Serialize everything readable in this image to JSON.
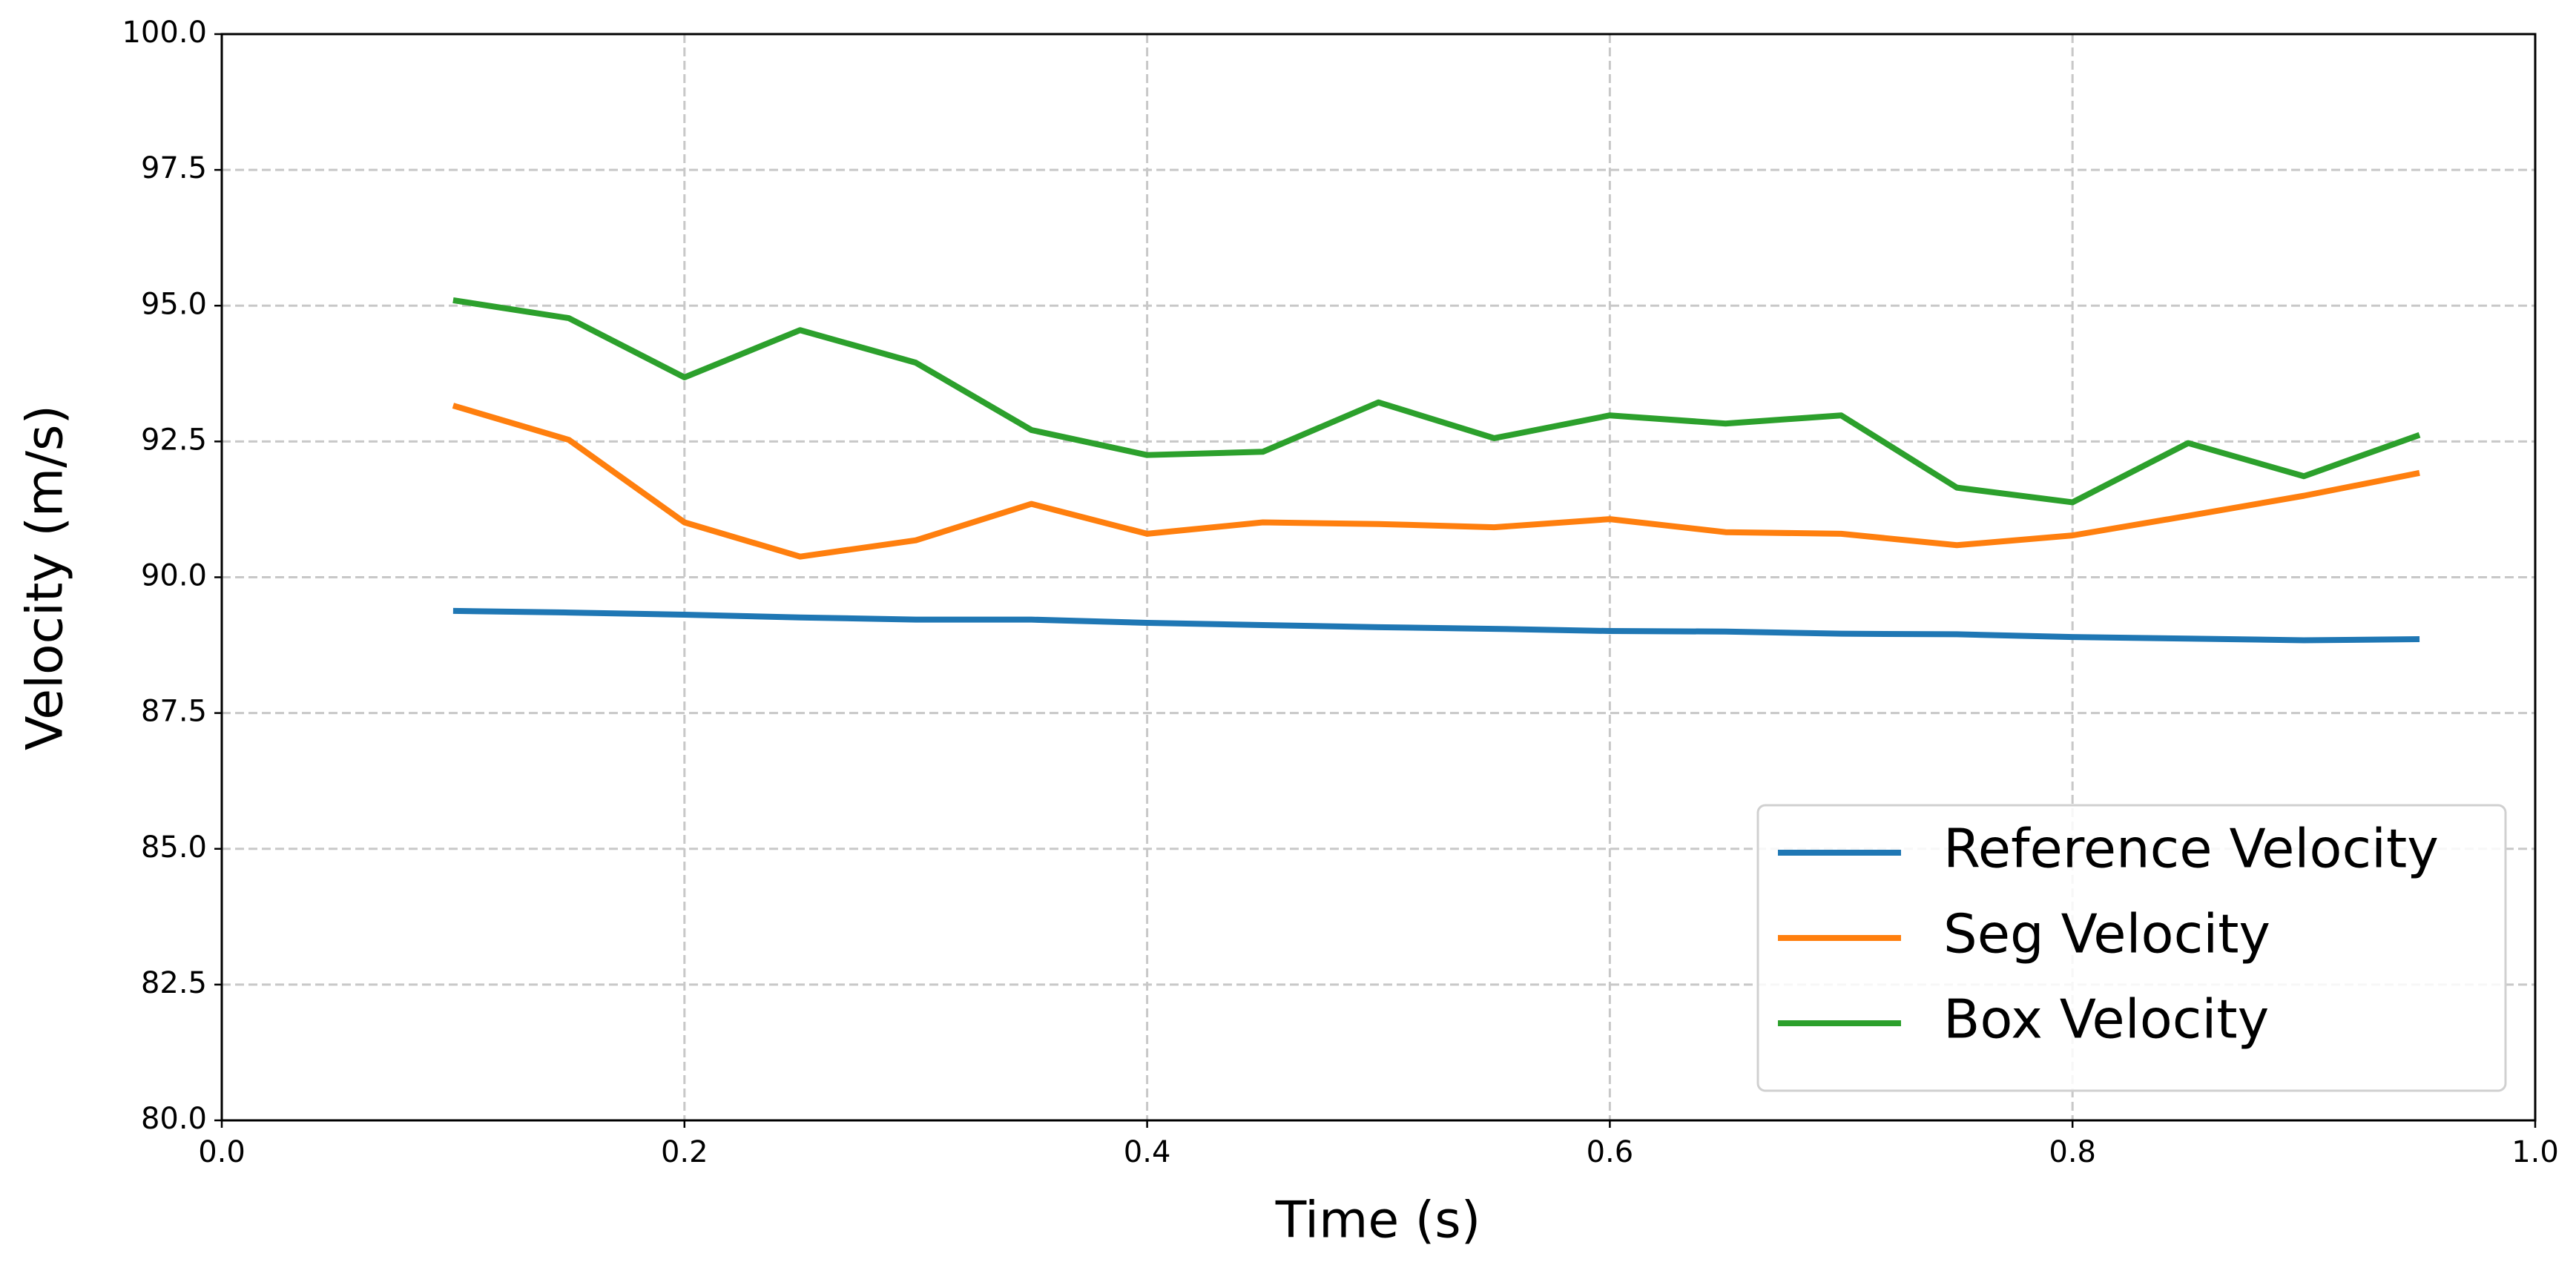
{
  "chart_data": {
    "type": "line",
    "xlabel": "Time (s)",
    "ylabel": "Velocity (m/s)",
    "x": [
      0.1,
      0.15,
      0.2,
      0.25,
      0.3,
      0.35,
      0.4,
      0.45,
      0.5,
      0.55,
      0.6,
      0.65,
      0.7,
      0.75,
      0.8,
      0.85,
      0.9,
      0.95
    ],
    "series": [
      {
        "name": "Reference Velocity",
        "color": "#1f77b4",
        "values": [
          89.38,
          89.35,
          89.31,
          89.26,
          89.22,
          89.22,
          89.16,
          89.12,
          89.08,
          89.05,
          89.01,
          89.0,
          88.96,
          88.95,
          88.9,
          88.87,
          88.84,
          88.86
        ]
      },
      {
        "name": "Seg Velocity",
        "color": "#ff7f0e",
        "values": [
          93.16,
          92.53,
          91.01,
          90.38,
          90.68,
          91.35,
          90.8,
          91.01,
          90.98,
          90.92,
          91.07,
          90.83,
          90.8,
          90.59,
          90.77,
          91.13,
          91.5,
          91.92
        ]
      },
      {
        "name": "Box Velocity",
        "color": "#2ca02c",
        "values": [
          95.1,
          94.77,
          93.68,
          94.55,
          93.95,
          92.71,
          92.25,
          92.31,
          93.22,
          92.56,
          92.98,
          92.83,
          92.98,
          91.65,
          91.38,
          92.47,
          91.86,
          92.62
        ]
      }
    ],
    "xlim": [
      0,
      1
    ],
    "ylim": [
      80,
      100
    ],
    "xticks": [
      {
        "value": 0,
        "label": "0.0"
      },
      0.2,
      0.4,
      0.6,
      0.8,
      {
        "value": 1,
        "label": "1.0"
      }
    ],
    "yticks": [
      {
        "value": 80,
        "label": "80.0"
      },
      82.5,
      {
        "value": 85,
        "label": "85.0"
      },
      87.5,
      {
        "value": 90,
        "label": "90.0"
      },
      92.5,
      {
        "value": 95,
        "label": "95.0"
      },
      97.5,
      {
        "value": 100,
        "label": "100.0"
      }
    ],
    "grid": true,
    "legend": "lower right"
  }
}
